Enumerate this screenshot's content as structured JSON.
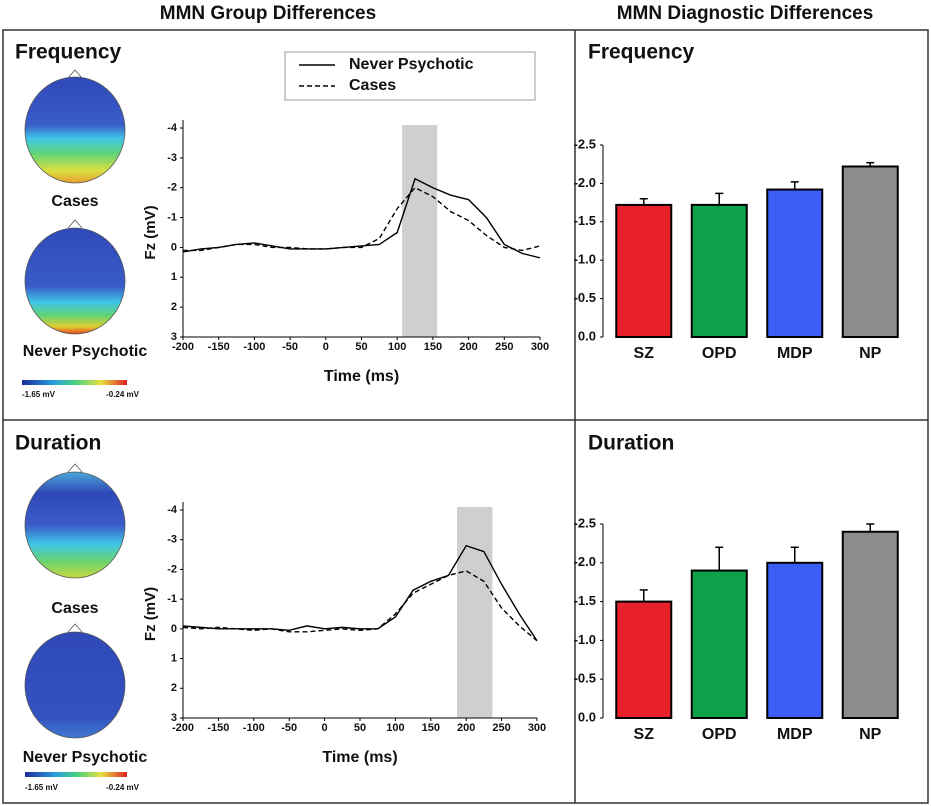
{
  "column_titles": [
    "MMN Group Differences",
    "MMN Diagnostic Differences"
  ],
  "panels": [
    {
      "title": "Frequency",
      "topomap_labels": [
        "Cases",
        "Never Psychotic"
      ],
      "colorbar_labels": [
        "-1.65 mV",
        "-0.24 mV"
      ]
    },
    {
      "title": "Duration",
      "topomap_labels": [
        "Cases",
        "Never Psychotic"
      ],
      "colorbar_labels": [
        "-1.65 mV",
        "-0.24 mV"
      ]
    }
  ],
  "diagnostic_titles": [
    "Frequency",
    "Duration"
  ],
  "chart_data": [
    {
      "type": "line",
      "xlabel": "Time (ms)",
      "ylabel": "Fz (mV)",
      "x": [
        -200,
        -175,
        -150,
        -125,
        -100,
        -75,
        -50,
        -25,
        0,
        25,
        50,
        75,
        100,
        125,
        150,
        175,
        200,
        225,
        250,
        275,
        300
      ],
      "xlim": [
        -200,
        300
      ],
      "xticks": [
        -200,
        -150,
        -100,
        -50,
        0,
        50,
        100,
        150,
        200,
        250,
        300
      ],
      "ylim": [
        3,
        -4
      ],
      "yticks": [
        -4,
        -3,
        -2,
        -1,
        0,
        1,
        2,
        3
      ],
      "highlight": [
        107,
        156
      ],
      "legend": "top-right",
      "series": [
        {
          "name": "Never Psychotic",
          "color": "#000000",
          "dash": "solid",
          "values": [
            0.15,
            0.05,
            0,
            -0.1,
            -0.15,
            -0.05,
            0.05,
            0.05,
            0.05,
            0,
            -0.05,
            -0.1,
            -0.5,
            -2.3,
            -2.0,
            -1.75,
            -1.6,
            -1.0,
            -0.1,
            0.2,
            0.35
          ]
        },
        {
          "name": "Cases",
          "color": "#000000",
          "dash": "dashed",
          "values": [
            0.1,
            0.1,
            0,
            -0.1,
            -0.1,
            0,
            0,
            0.05,
            0.05,
            0,
            0,
            -0.3,
            -1.3,
            -2.0,
            -1.7,
            -1.2,
            -0.9,
            -0.4,
            0,
            0.1,
            -0.05
          ]
        }
      ]
    },
    {
      "type": "bar",
      "categories": [
        "SZ",
        "OPD",
        "MDP",
        "NP"
      ],
      "values": [
        -1.72,
        -1.72,
        -1.92,
        -2.22
      ],
      "errors": [
        0.08,
        0.15,
        0.1,
        0.05
      ],
      "colors": [
        "#e8202a",
        "#0fa14a",
        "#3b5cf5",
        "#8c8c8c"
      ],
      "ylim": [
        0,
        -2.5
      ],
      "yticks": [
        -2.5,
        {
          "value": -2.0,
          "label": "-2.0"
        },
        -1.5,
        {
          "value": -1.0,
          "label": "-1.0"
        },
        -0.5,
        {
          "value": 0.0,
          "label": "0.0"
        }
      ]
    },
    {
      "type": "line",
      "xlabel": "Time (ms)",
      "ylabel": "Fz (mV)",
      "x": [
        -200,
        -175,
        -150,
        -125,
        -100,
        -75,
        -50,
        -25,
        0,
        25,
        50,
        75,
        100,
        125,
        150,
        175,
        200,
        225,
        250,
        275,
        300
      ],
      "xlim": [
        -200,
        300
      ],
      "xticks": [
        -200,
        -150,
        -100,
        -50,
        0,
        50,
        100,
        150,
        200,
        250,
        300
      ],
      "ylim": [
        3,
        -4
      ],
      "yticks": [
        -4,
        -3,
        -2,
        -1,
        0,
        1,
        2,
        3
      ],
      "highlight": [
        187,
        237
      ],
      "series": [
        {
          "color": "#000000",
          "dash": "solid",
          "values": [
            -0.1,
            -0.05,
            0,
            0,
            0,
            0,
            0.05,
            -0.1,
            0,
            -0.05,
            0,
            0,
            -0.4,
            -1.3,
            -1.6,
            -1.8,
            -2.8,
            -2.6,
            -1.5,
            -0.5,
            0.4
          ]
        },
        {
          "color": "#000000",
          "dash": "dashed",
          "values": [
            -0.05,
            0,
            -0.05,
            0,
            0.05,
            0,
            0.1,
            0.1,
            0.05,
            0,
            0.05,
            0,
            -0.5,
            -1.2,
            -1.5,
            -1.8,
            -1.95,
            -1.6,
            -0.7,
            -0.1,
            0.4
          ]
        }
      ]
    },
    {
      "type": "bar",
      "categories": [
        "SZ",
        "OPD",
        "MDP",
        "NP"
      ],
      "values": [
        -1.5,
        -1.9,
        -2.0,
        -2.4
      ],
      "errors": [
        0.15,
        0.3,
        0.2,
        0.1
      ],
      "colors": [
        "#e8202a",
        "#0fa14a",
        "#3b5cf5",
        "#8c8c8c"
      ],
      "ylim": [
        0,
        -2.5
      ],
      "yticks": [
        -2.5,
        {
          "value": -2.0,
          "label": "-2.0"
        },
        -1.5,
        {
          "value": -1.0,
          "label": "-1.0"
        },
        -0.5,
        {
          "value": 0.0,
          "label": "0.0"
        }
      ]
    }
  ]
}
